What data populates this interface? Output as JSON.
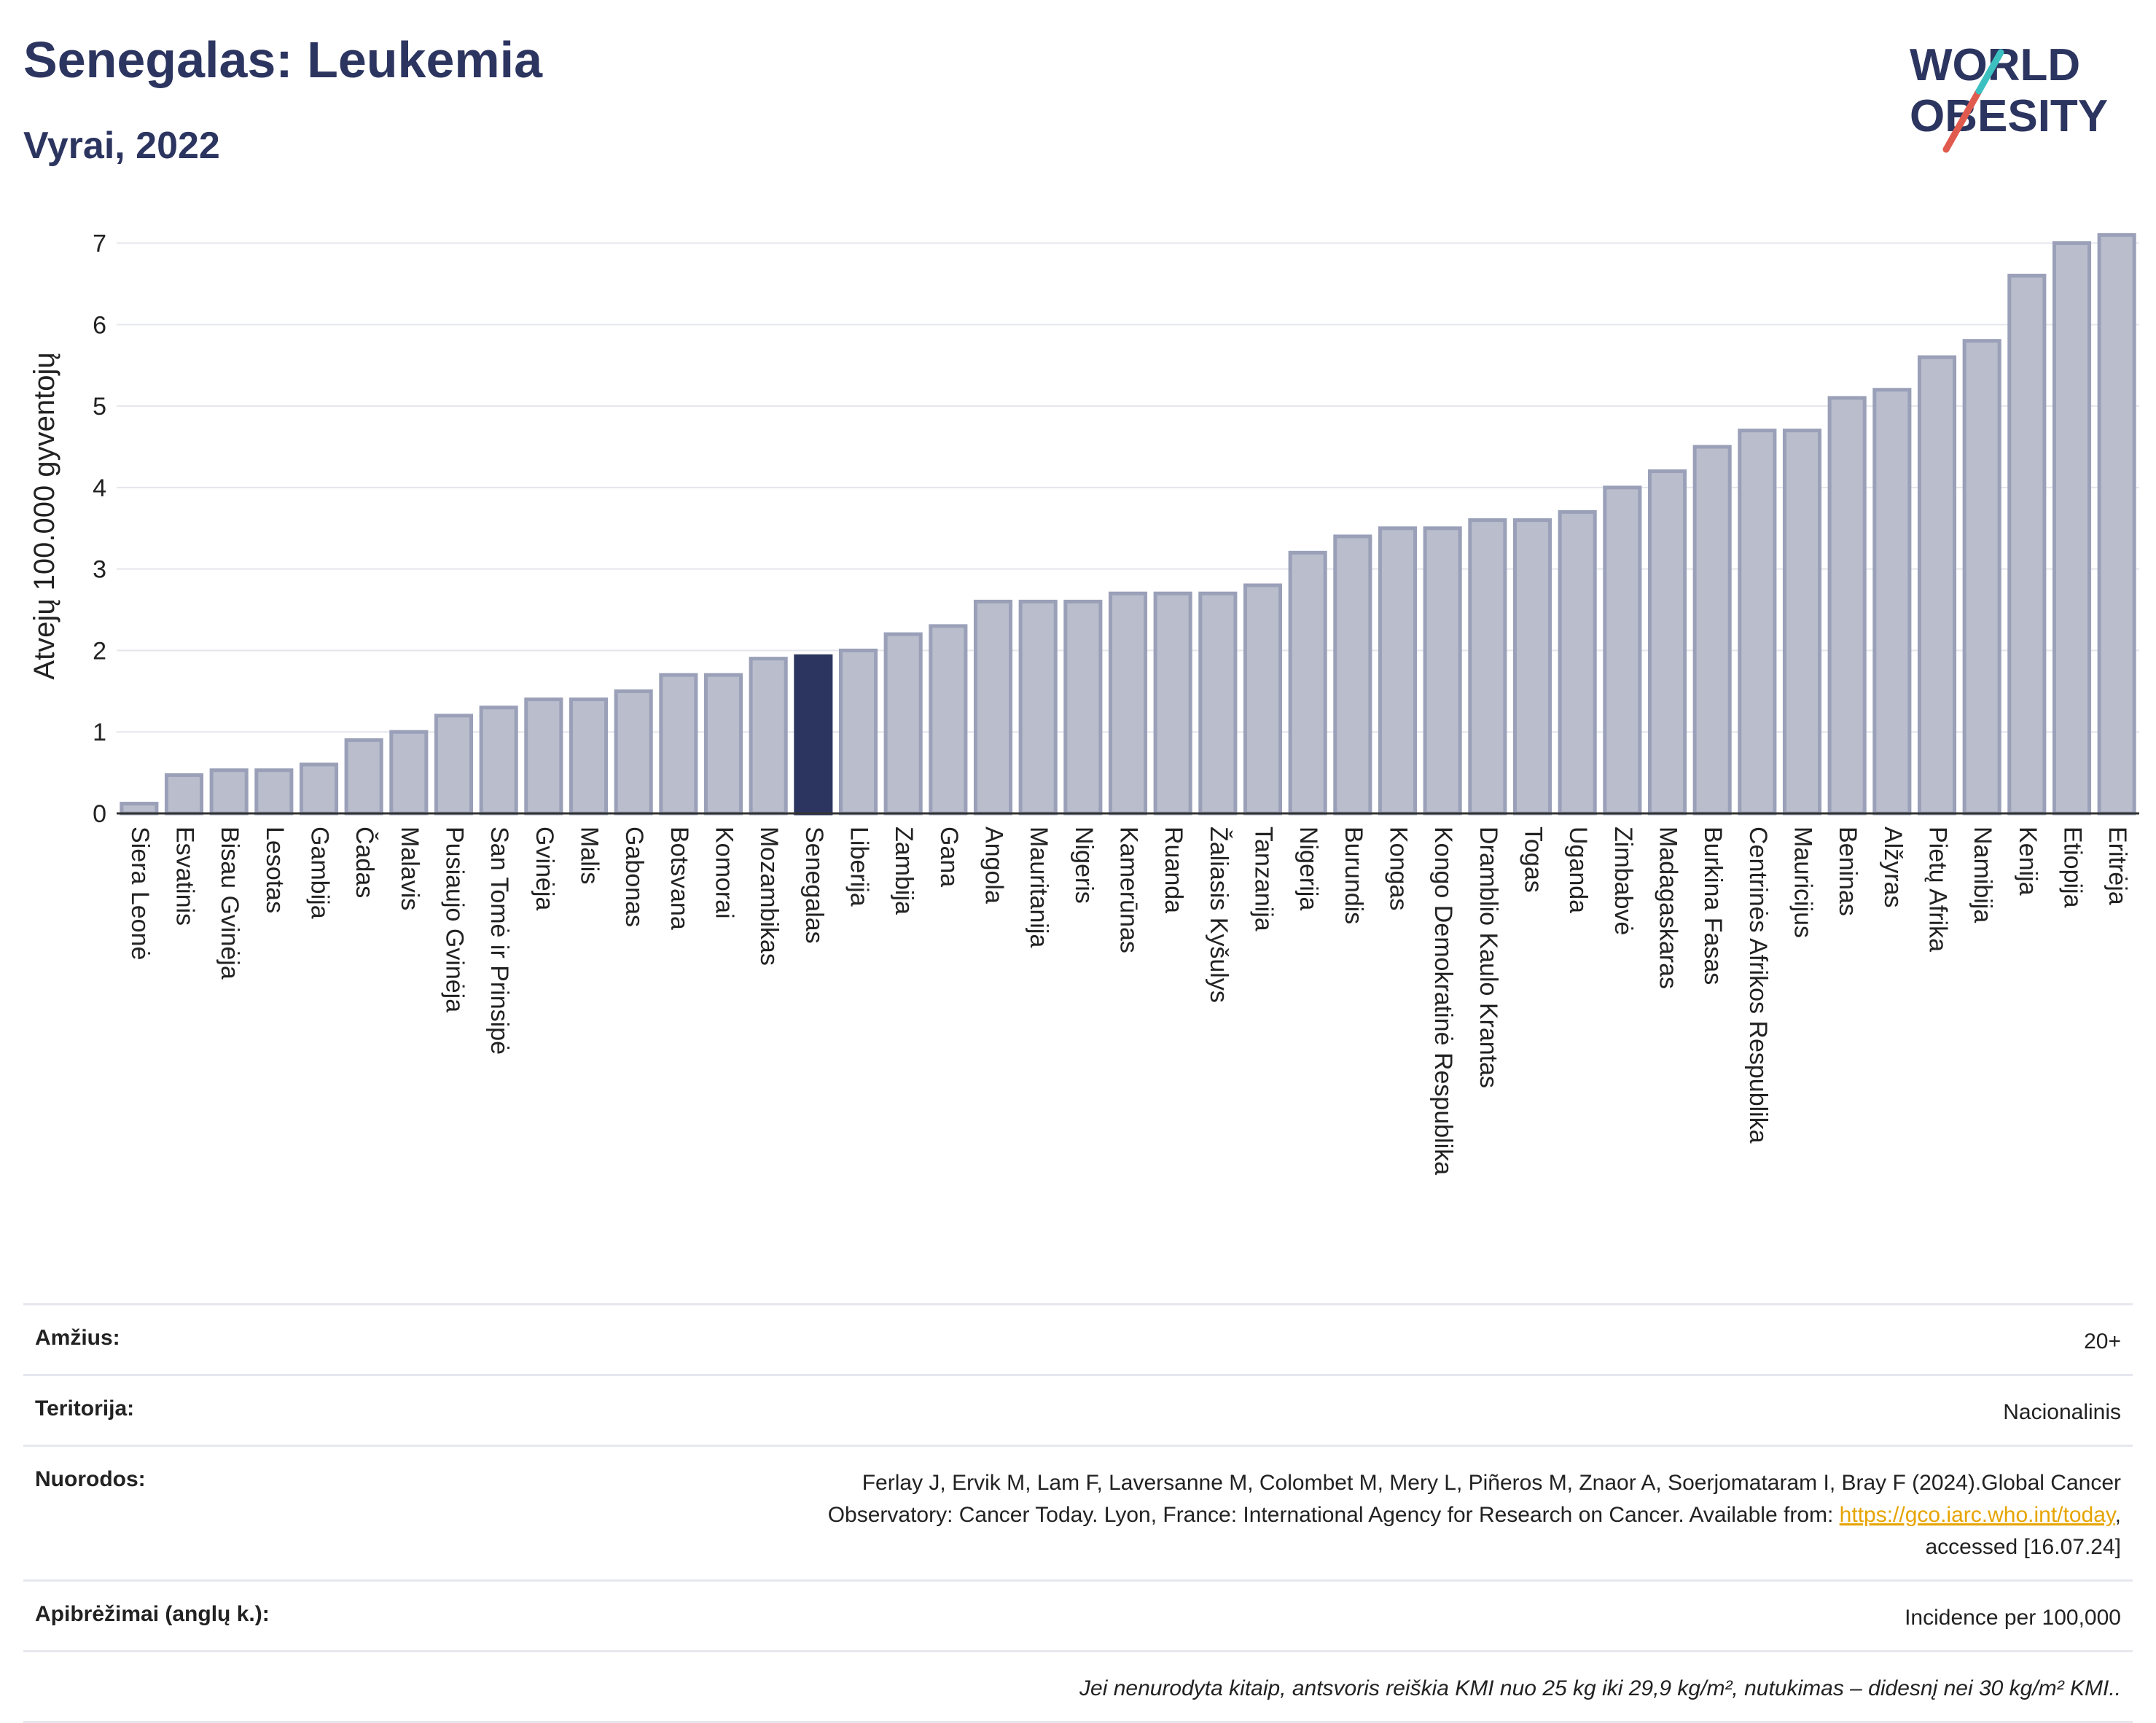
{
  "header": {
    "title": "Senegalas: Leukemia",
    "subtitle": "Vyrai, 2022"
  },
  "logo": {
    "line1": "WORLD",
    "line2": "OBESITY",
    "colors": {
      "text": "#2c3560",
      "slash_red": "#e05a4e",
      "slash_teal": "#3cc1c0"
    }
  },
  "chart_data": {
    "type": "bar",
    "ylabel": "Atvejų 100.000 gyventojų",
    "xlabel": "",
    "ylim": [
      0,
      7.3
    ],
    "yticks": [
      0,
      1,
      2,
      3,
      4,
      5,
      6,
      7
    ],
    "grid": true,
    "highlight": "Senegalas",
    "colors": {
      "bar": "#b9bdcc",
      "bar_edge": "#9aa0b8",
      "highlight": "#2c3560"
    },
    "categories": [
      "Siera Leonė",
      "Esvatinis",
      "Bisau Gvinėja",
      "Lesotas",
      "Gambija",
      "Čadas",
      "Malavis",
      "Pusiaujo Gvinėja",
      "San Tomė ir Prinsipė",
      "Gvinėja",
      "Malis",
      "Gabonas",
      "Botsvana",
      "Komorai",
      "Mozambikas",
      "Senegalas",
      "Liberija",
      "Zambija",
      "Gana",
      "Angola",
      "Mauritanija",
      "Nigeris",
      "Kamerūnas",
      "Ruanda",
      "Žaliasis Kyšulys",
      "Tanzanija",
      "Nigerija",
      "Burundis",
      "Kongas",
      "Kongo Demokratinė Respublika",
      "Dramblio Kaulo Krantas",
      "Togas",
      "Uganda",
      "Zimbabvė",
      "Madagaskaras",
      "Burkina Fasas",
      "Centrinės Afrikos Respublika",
      "Mauricijus",
      "Beninas",
      "Alžyras",
      "Pietų Afrika",
      "Namibija",
      "Kenija",
      "Etiopija",
      "Eritrėja"
    ],
    "values": [
      0.12,
      0.47,
      0.53,
      0.53,
      0.6,
      0.9,
      1.0,
      1.2,
      1.3,
      1.4,
      1.4,
      1.5,
      1.7,
      1.7,
      1.9,
      1.93,
      2.0,
      2.2,
      2.3,
      2.6,
      2.6,
      2.6,
      2.7,
      2.7,
      2.7,
      2.8,
      3.2,
      3.4,
      3.5,
      3.5,
      3.6,
      3.6,
      3.7,
      4.0,
      4.2,
      4.5,
      4.7,
      4.7,
      5.1,
      5.2,
      5.6,
      5.8,
      6.6,
      7.0,
      7.1
    ]
  },
  "info": {
    "rows": [
      {
        "label": "Amžius:",
        "value": "20+"
      },
      {
        "label": "Teritorija:",
        "value": "Nacionalinis"
      },
      {
        "label": "Nuorodos:",
        "value_line1": "Ferlay J, Ervik M, Lam F, Laversanne M, Colombet M, Mery L, Piñeros M, Znaor A, Soerjomataram I, Bray F (2024).Global Cancer",
        "value_line2": "Observatory: Cancer Today. Lyon, France: International Agency for Research on Cancer. Available from: ",
        "link": "https://gco.iarc.who.int/today",
        "value_line3": "accessed [16.07.24]"
      },
      {
        "label": "Apibrėžimai (anglų k.):",
        "value": "Incidence per 100,000"
      }
    ],
    "note": "Jei nenurodyta kitaip, antsvoris reiškia KMI nuo 25 kg iki 29,9 kg/m², nutukimas – didesnį nei 30 kg/m² KMI.."
  }
}
